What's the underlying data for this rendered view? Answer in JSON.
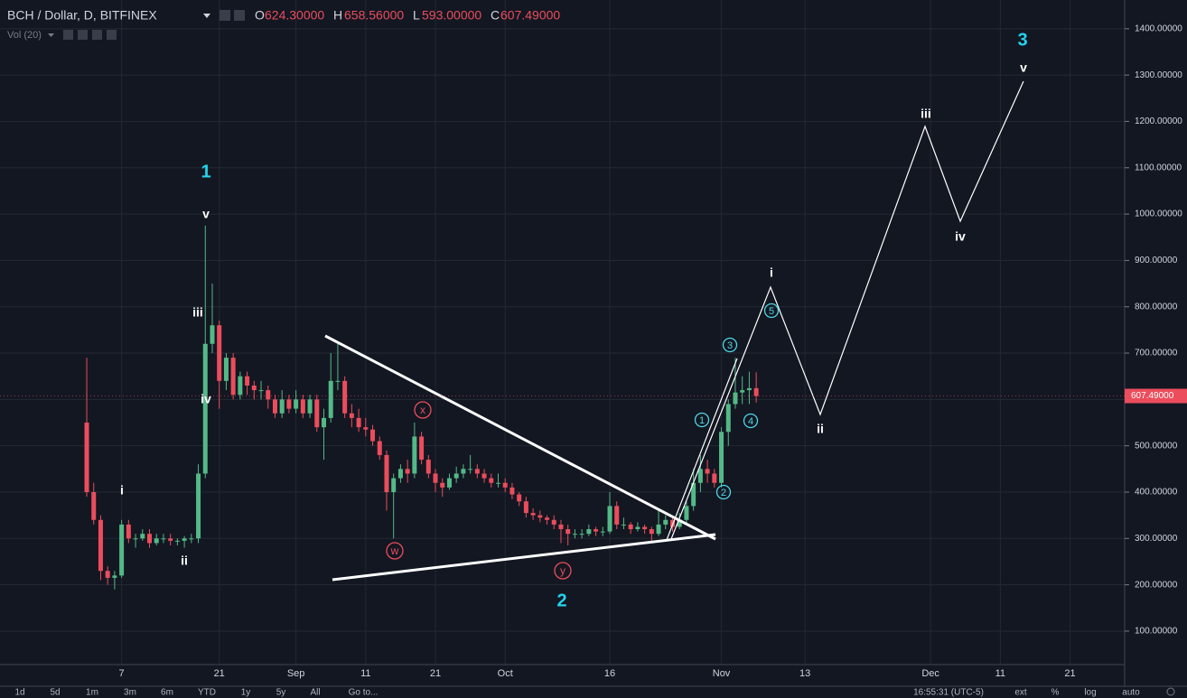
{
  "chart_data": {
    "type": "candlestick",
    "title": "BCH / Dollar, D, BITFINEX",
    "ohlc_header": {
      "o_label": "O",
      "open": "624.30000",
      "h_label": "H",
      "high": "658.56000",
      "l_label": "L",
      "low": "593.00000",
      "c_label": "C",
      "close": "607.49000"
    },
    "indicator": "Vol (20)",
    "up_color": "#53b987",
    "down_color": "#eb4d5c",
    "x": [
      "Aug 2",
      "Aug 3",
      "Aug 4",
      "Aug 5",
      "Aug 6",
      "Aug 7",
      "Aug 8",
      "Aug 9",
      "Aug 10",
      "Aug 11",
      "Aug 12",
      "Aug 13",
      "Aug 14",
      "Aug 15",
      "Aug 16",
      "Aug 17",
      "Aug 18",
      "Aug 19",
      "Aug 20",
      "Aug 21",
      "Aug 22",
      "Aug 23",
      "Aug 24",
      "Aug 25",
      "Aug 26",
      "Aug 27",
      "Aug 28",
      "Aug 29",
      "Aug 30",
      "Aug 31",
      "Sep 1",
      "Sep 2",
      "Sep 3",
      "Sep 4",
      "Sep 5",
      "Sep 6",
      "Sep 7",
      "Sep 8",
      "Sep 9",
      "Sep 10",
      "Sep 11",
      "Sep 12",
      "Sep 13",
      "Sep 14",
      "Sep 15",
      "Sep 16",
      "Sep 17",
      "Sep 18",
      "Sep 19",
      "Sep 20",
      "Sep 21",
      "Sep 22",
      "Sep 23",
      "Sep 24",
      "Sep 25",
      "Sep 26",
      "Sep 27",
      "Sep 28",
      "Sep 29",
      "Sep 30",
      "Oct 1",
      "Oct 2",
      "Oct 3",
      "Oct 4",
      "Oct 5",
      "Oct 6",
      "Oct 7",
      "Oct 8",
      "Oct 9",
      "Oct 10",
      "Oct 11",
      "Oct 12",
      "Oct 13",
      "Oct 14",
      "Oct 15",
      "Oct 16",
      "Oct 17",
      "Oct 18",
      "Oct 19",
      "Oct 20",
      "Oct 21",
      "Oct 22",
      "Oct 23",
      "Oct 24",
      "Oct 25",
      "Oct 26",
      "Oct 27",
      "Oct 28",
      "Oct 29",
      "Oct 30",
      "Oct 31",
      "Nov 1",
      "Nov 2",
      "Nov 3",
      "Nov 4",
      "Nov 5",
      "Nov 6"
    ],
    "open": [
      550,
      400,
      340,
      230,
      215,
      220,
      330,
      300,
      300,
      310,
      290,
      300,
      300,
      295,
      295,
      300,
      300,
      440,
      720,
      760,
      640,
      690,
      610,
      650,
      630,
      620,
      620,
      600,
      570,
      600,
      580,
      600,
      570,
      600,
      540,
      560,
      640,
      640,
      570,
      560,
      540,
      535,
      510,
      480,
      400,
      430,
      450,
      440,
      520,
      470,
      440,
      420,
      410,
      430,
      440,
      450,
      450,
      440,
      430,
      420,
      420,
      410,
      395,
      380,
      355,
      350,
      345,
      340,
      330,
      320,
      310,
      310,
      310,
      320,
      315,
      315,
      370,
      330,
      330,
      320,
      325,
      320,
      310,
      330,
      340,
      325,
      340,
      370,
      420,
      450,
      440,
      420,
      530,
      590,
      615,
      620,
      624.3
    ],
    "high": [
      690,
      420,
      350,
      240,
      230,
      340,
      340,
      310,
      320,
      320,
      310,
      310,
      310,
      300,
      305,
      310,
      460,
      975,
      850,
      770,
      700,
      700,
      660,
      660,
      640,
      640,
      630,
      610,
      620,
      610,
      620,
      610,
      610,
      610,
      580,
      700,
      720,
      650,
      590,
      580,
      560,
      545,
      520,
      490,
      440,
      460,
      470,
      550,
      530,
      480,
      450,
      430,
      440,
      455,
      460,
      480,
      460,
      450,
      440,
      440,
      430,
      420,
      400,
      390,
      365,
      360,
      350,
      350,
      340,
      330,
      320,
      320,
      330,
      325,
      325,
      400,
      380,
      345,
      335,
      335,
      330,
      325,
      360,
      350,
      345,
      355,
      380,
      450,
      480,
      470,
      450,
      540,
      600,
      690,
      650,
      660,
      658.56
    ],
    "low": [
      390,
      330,
      210,
      200,
      190,
      215,
      290,
      280,
      295,
      280,
      285,
      290,
      285,
      285,
      280,
      290,
      290,
      430,
      700,
      580,
      620,
      600,
      600,
      610,
      600,
      600,
      580,
      560,
      560,
      570,
      570,
      560,
      560,
      530,
      470,
      550,
      620,
      560,
      540,
      530,
      520,
      500,
      470,
      360,
      300,
      420,
      420,
      430,
      460,
      430,
      400,
      390,
      405,
      420,
      430,
      440,
      430,
      420,
      410,
      410,
      400,
      385,
      370,
      345,
      340,
      335,
      330,
      320,
      290,
      285,
      300,
      300,
      305,
      305,
      305,
      310,
      320,
      320,
      310,
      315,
      310,
      290,
      305,
      320,
      315,
      320,
      330,
      360,
      400,
      420,
      410,
      410,
      500,
      580,
      590,
      590,
      593
    ],
    "close": [
      400,
      340,
      230,
      215,
      220,
      330,
      300,
      300,
      310,
      290,
      300,
      300,
      295,
      295,
      300,
      300,
      440,
      720,
      760,
      640,
      690,
      610,
      650,
      630,
      620,
      620,
      600,
      570,
      600,
      580,
      600,
      570,
      600,
      540,
      560,
      640,
      640,
      570,
      560,
      540,
      535,
      510,
      480,
      400,
      430,
      450,
      440,
      520,
      470,
      440,
      420,
      410,
      430,
      440,
      450,
      450,
      440,
      430,
      420,
      420,
      410,
      395,
      380,
      355,
      350,
      345,
      340,
      330,
      320,
      310,
      310,
      310,
      320,
      315,
      315,
      370,
      330,
      330,
      320,
      325,
      320,
      310,
      330,
      340,
      325,
      340,
      370,
      420,
      450,
      440,
      420,
      530,
      590,
      615,
      620,
      624.3,
      607.49
    ],
    "last_price_label": "607.49000",
    "ylim": [
      20,
      1462
    ],
    "yticks": [
      {
        "value": 100,
        "label": "100.00000"
      },
      {
        "value": 200,
        "label": "200.00000"
      },
      {
        "value": 300,
        "label": "300.00000"
      },
      {
        "value": 400,
        "label": "400.00000"
      },
      {
        "value": 500,
        "label": "500.00000"
      },
      {
        "value": 600,
        "label": "600.00000"
      },
      {
        "value": 700,
        "label": "700.00000"
      },
      {
        "value": 800,
        "label": "800.00000"
      },
      {
        "value": 900,
        "label": "900.00000"
      },
      {
        "value": 1000,
        "label": "1000.00000"
      },
      {
        "value": 1100,
        "label": "1100.00000"
      },
      {
        "value": 1200,
        "label": "1200.00000"
      },
      {
        "value": 1300,
        "label": "1300.00000"
      },
      {
        "value": 1400,
        "label": "1400.00000"
      }
    ],
    "xticks": [
      {
        "value": "Aug 7",
        "label": "7"
      },
      {
        "value": "Aug 21",
        "label": "21"
      },
      {
        "value": "Sep 1",
        "label": "Sep"
      },
      {
        "value": "Sep 11",
        "label": "11"
      },
      {
        "value": "Sep 21",
        "label": "21"
      },
      {
        "value": "Oct 1",
        "label": "Oct"
      },
      {
        "value": "Oct 16",
        "label": "16"
      },
      {
        "value": "Nov 1",
        "label": "Nov"
      },
      {
        "value": "Nov 13",
        "label": "13"
      },
      {
        "value": "Dec 1",
        "label": "Dec"
      },
      {
        "value": "Dec 11",
        "label": "11"
      },
      {
        "value": "Dec 21",
        "label": "21"
      }
    ],
    "grid": true,
    "annotations": [
      "1",
      "v",
      "iii",
      "iv",
      "i",
      "ii",
      "x",
      "w",
      "y",
      "2",
      "1",
      "2",
      "3",
      "4",
      "5",
      "i",
      "ii",
      "iii",
      "iv",
      "v",
      "3"
    ]
  },
  "toolbar": {
    "ranges": [
      "1d",
      "5d",
      "1m",
      "3m",
      "6m",
      "YTD",
      "1y",
      "5y",
      "All",
      "Go to..."
    ],
    "time": "16:55:31 (UTC-5)",
    "options": [
      "ext",
      "%",
      "log",
      "auto"
    ]
  }
}
